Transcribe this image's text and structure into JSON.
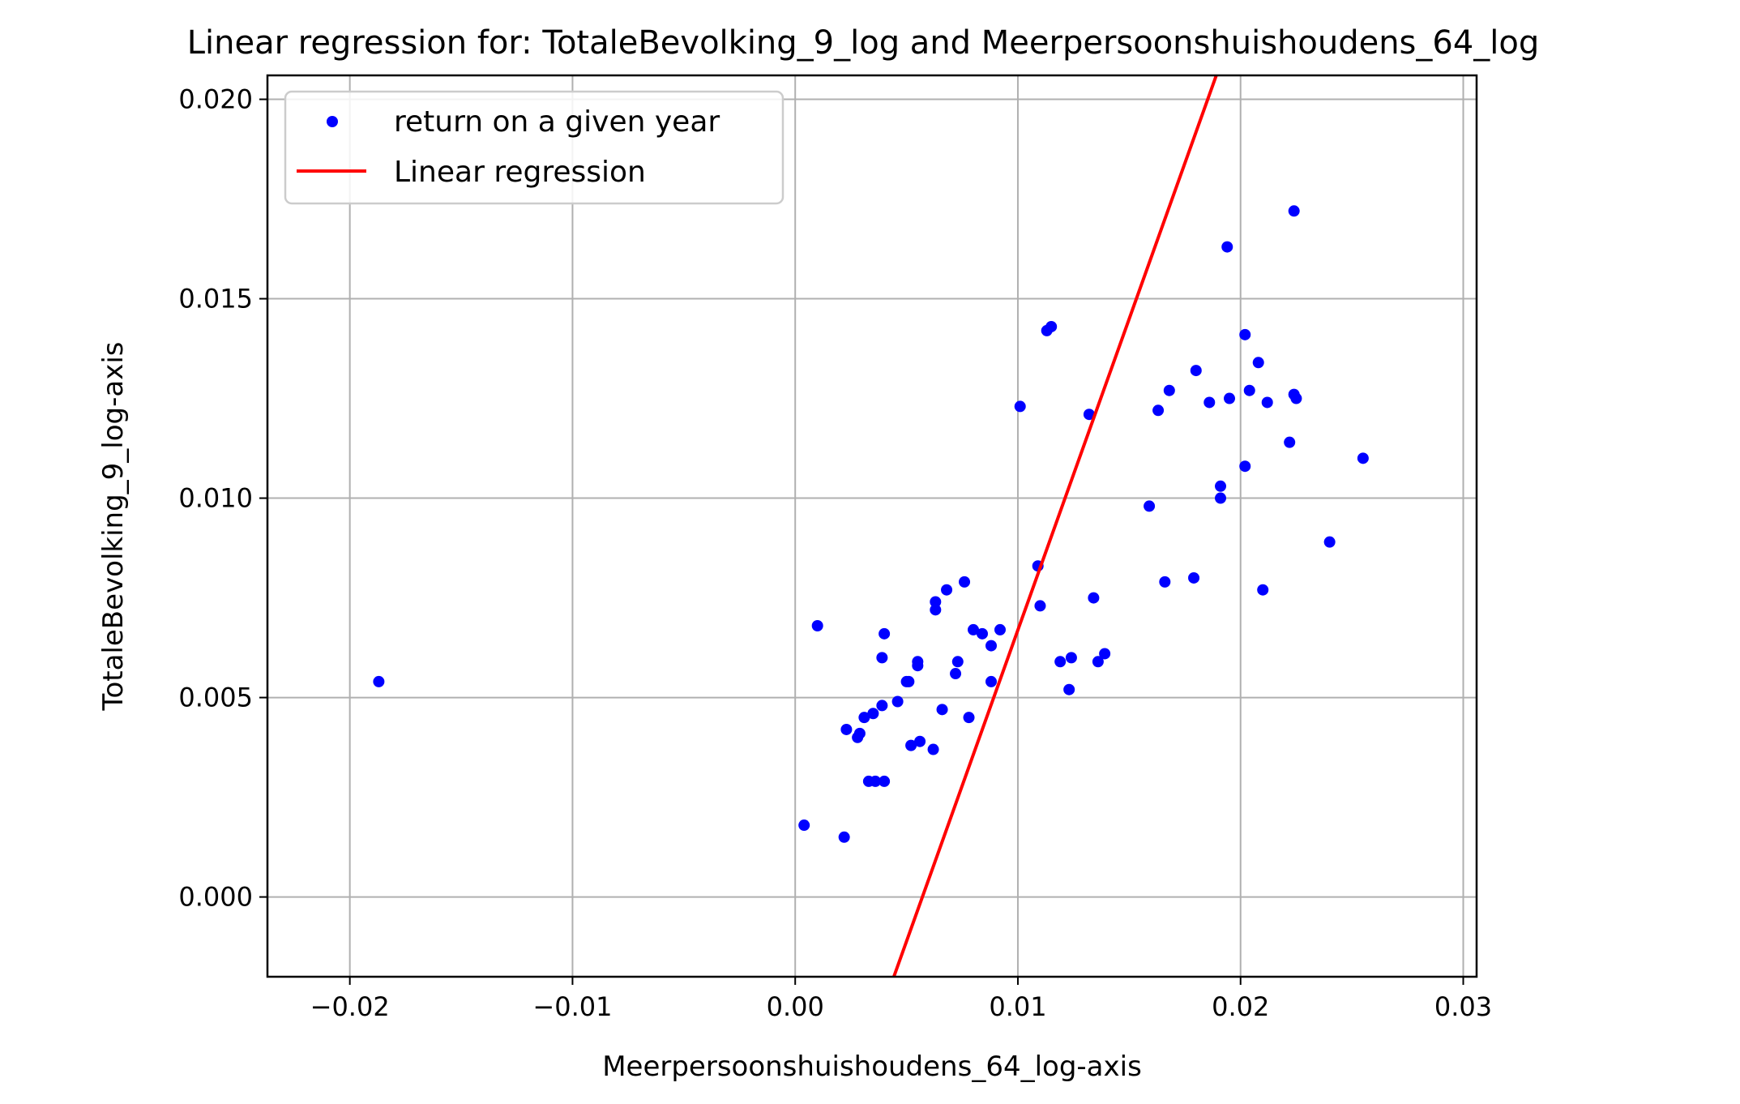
{
  "chart_data": {
    "type": "scatter",
    "title": "Linear regression for: TotaleBevolking_9_log and Meerpersoonshuishoudens_64_log",
    "xlabel": "Meerpersoonshuishoudens_64_log-axis",
    "ylabel": "TotaleBevolking_9_log-axis",
    "xlim": [
      -0.0237,
      0.0306
    ],
    "ylim": [
      -0.002,
      0.0206
    ],
    "xticks": [
      -0.02,
      -0.01,
      0.0,
      0.01,
      0.02,
      0.03
    ],
    "xtick_labels": [
      "−0.02",
      "−0.01",
      "0.00",
      "0.01",
      "0.02",
      "0.03"
    ],
    "yticks": [
      0.0,
      0.005,
      0.01,
      0.015,
      0.02
    ],
    "ytick_labels": [
      "0.000",
      "0.005",
      "0.010",
      "0.015",
      "0.020"
    ],
    "grid": true,
    "legend_position": "top-left",
    "series": [
      {
        "name": "return on a given year",
        "kind": "scatter",
        "color": "#0000ff",
        "points": [
          [
            -0.0187,
            0.0054
          ],
          [
            0.0004,
            0.0018
          ],
          [
            0.001,
            0.0068
          ],
          [
            0.0022,
            0.0015
          ],
          [
            0.0023,
            0.0042
          ],
          [
            0.0028,
            0.004
          ],
          [
            0.0029,
            0.0041
          ],
          [
            0.0031,
            0.0045
          ],
          [
            0.0033,
            0.0029
          ],
          [
            0.0035,
            0.0046
          ],
          [
            0.0036,
            0.0029
          ],
          [
            0.0039,
            0.0048
          ],
          [
            0.0039,
            0.006
          ],
          [
            0.004,
            0.0066
          ],
          [
            0.004,
            0.0029
          ],
          [
            0.0046,
            0.0049
          ],
          [
            0.005,
            0.0054
          ],
          [
            0.0051,
            0.0054
          ],
          [
            0.0052,
            0.0038
          ],
          [
            0.0055,
            0.0058
          ],
          [
            0.0055,
            0.0059
          ],
          [
            0.0056,
            0.0039
          ],
          [
            0.0062,
            0.0037
          ],
          [
            0.0063,
            0.0074
          ],
          [
            0.0063,
            0.0072
          ],
          [
            0.0066,
            0.0047
          ],
          [
            0.0068,
            0.0077
          ],
          [
            0.0072,
            0.0056
          ],
          [
            0.0073,
            0.0059
          ],
          [
            0.0076,
            0.0079
          ],
          [
            0.0078,
            0.0045
          ],
          [
            0.008,
            0.0067
          ],
          [
            0.0084,
            0.0066
          ],
          [
            0.0088,
            0.0063
          ],
          [
            0.0088,
            0.0054
          ],
          [
            0.0092,
            0.0067
          ],
          [
            0.0101,
            0.0123
          ],
          [
            0.0109,
            0.0083
          ],
          [
            0.011,
            0.0073
          ],
          [
            0.0113,
            0.0142
          ],
          [
            0.0115,
            0.0143
          ],
          [
            0.0119,
            0.0059
          ],
          [
            0.0123,
            0.0052
          ],
          [
            0.0124,
            0.006
          ],
          [
            0.0132,
            0.0121
          ],
          [
            0.0134,
            0.0075
          ],
          [
            0.0136,
            0.0059
          ],
          [
            0.0139,
            0.0061
          ],
          [
            0.0159,
            0.0098
          ],
          [
            0.0163,
            0.0122
          ],
          [
            0.0166,
            0.0079
          ],
          [
            0.0168,
            0.0127
          ],
          [
            0.0179,
            0.008
          ],
          [
            0.018,
            0.0132
          ],
          [
            0.0186,
            0.0124
          ],
          [
            0.0191,
            0.0103
          ],
          [
            0.0191,
            0.01
          ],
          [
            0.0194,
            0.0163
          ],
          [
            0.0195,
            0.0125
          ],
          [
            0.0202,
            0.0108
          ],
          [
            0.0202,
            0.0141
          ],
          [
            0.0204,
            0.0127
          ],
          [
            0.0208,
            0.0134
          ],
          [
            0.021,
            0.0077
          ],
          [
            0.0212,
            0.0124
          ],
          [
            0.0222,
            0.0114
          ],
          [
            0.0224,
            0.0126
          ],
          [
            0.0224,
            0.0172
          ],
          [
            0.0225,
            0.0125
          ],
          [
            0.024,
            0.0089
          ],
          [
            0.0255,
            0.011
          ]
        ]
      },
      {
        "name": "Linear regression",
        "kind": "line",
        "color": "#ff0000",
        "points": [
          [
            0.00443,
            -0.002
          ],
          [
            0.01891,
            0.0206
          ]
        ]
      }
    ]
  }
}
